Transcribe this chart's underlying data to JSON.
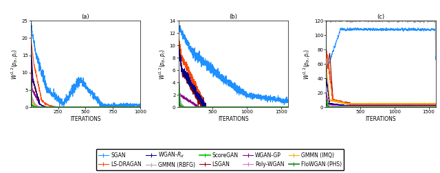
{
  "title_a": "(a)",
  "title_b": "(b)",
  "title_c": "(c)",
  "xlabel": "ITERATIONS",
  "ylabel": "$W^{2,2}(p_{\\theta}, p_r)$",
  "colors": {
    "SGAN": "#1E90FF",
    "LSDRAGAN": "#FF4500",
    "WGANRD": "#00008B",
    "GMMN_RBFG": "#A9A9A9",
    "SCOREGAN": "#00CC00",
    "LSGAN": "#8B0000",
    "WGANGP": "#8B008B",
    "POLYWGAN": "#DA70D6",
    "GMMN_IMQ": "#FFA500",
    "FLOWGAN": "#228B22"
  },
  "legend_entries": [
    {
      "label": "SGAN",
      "color": "#1E90FF",
      "bold": false
    },
    {
      "label": "LS-DRAGAN",
      "color": "#FF4500",
      "bold": false
    },
    {
      "label": "WGAN-$R_d$",
      "color": "#00008B",
      "bold": false
    },
    {
      "label": "GMMN (RBFG)",
      "color": "#A9A9A9",
      "bold": false
    },
    {
      "label": "ScoreGAN",
      "color": "#00CC00",
      "bold": true
    },
    {
      "label": "LSGAN",
      "color": "#8B0000",
      "bold": false
    },
    {
      "label": "WGAN-GP",
      "color": "#8B008B",
      "bold": false
    },
    {
      "label": "Poly-WGAN",
      "color": "#DA70D6",
      "bold": false
    },
    {
      "label": "GMMN (IMQ)",
      "color": "#FFA500",
      "bold": false
    },
    {
      "label": "FloWGAN (PHS)",
      "color": "#228B22",
      "bold": true
    }
  ],
  "seed": 42
}
